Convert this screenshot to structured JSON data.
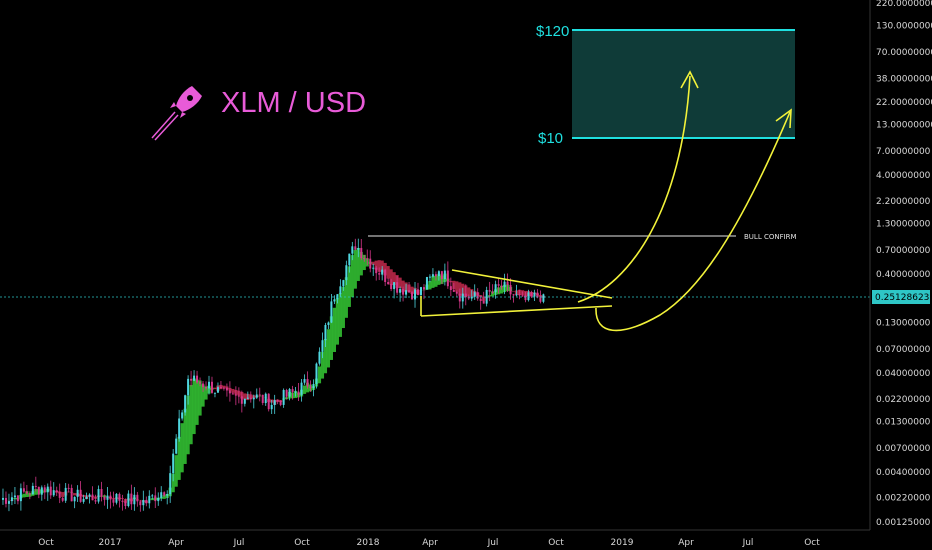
{
  "chart_data": {
    "type": "candlestick",
    "title": "XLM / USD",
    "scale": "log",
    "y_ticks": [
      "220.00000000",
      "130.00000000",
      "70.00000000",
      "38.00000000",
      "22.00000000",
      "13.00000000",
      "7.00000000",
      "4.00000000",
      "2.20000000",
      "1.30000000",
      "0.70000000",
      "0.40000000",
      "0.13000000",
      "0.07000000",
      "0.04000000",
      "0.02200000",
      "0.01300000",
      "0.00700000",
      "0.00400000",
      "0.00220000",
      "0.00125000"
    ],
    "x_ticks": [
      "Oct",
      "2017",
      "Apr",
      "Jul",
      "Oct",
      "2018",
      "Apr",
      "Jul",
      "Oct",
      "2019",
      "Apr",
      "Jul",
      "Oct"
    ],
    "current_price": "0.25128623",
    "price_series": [
      [
        "2016-08",
        0.0021
      ],
      [
        "2016-09",
        0.0024
      ],
      [
        "2016-10",
        0.0028
      ],
      [
        "2016-11",
        0.0024
      ],
      [
        "2016-12",
        0.0022
      ],
      [
        "2017-01",
        0.0023
      ],
      [
        "2017-02",
        0.0021
      ],
      [
        "2017-03",
        0.002
      ],
      [
        "2017-04",
        0.0028
      ],
      [
        "2017-05",
        0.035
      ],
      [
        "2017-06",
        0.03
      ],
      [
        "2017-07",
        0.022
      ],
      [
        "2017-08",
        0.024
      ],
      [
        "2017-09",
        0.02
      ],
      [
        "2017-10",
        0.025
      ],
      [
        "2017-11",
        0.035
      ],
      [
        "2017-12",
        0.25
      ],
      [
        "2018-01",
        0.8
      ],
      [
        "2018-02",
        0.45
      ],
      [
        "2018-03",
        0.3
      ],
      [
        "2018-04",
        0.25
      ],
      [
        "2018-05",
        0.45
      ],
      [
        "2018-06",
        0.25
      ],
      [
        "2018-07",
        0.22
      ],
      [
        "2018-08",
        0.3
      ],
      [
        "2018-09",
        0.21
      ],
      [
        "2018-10",
        0.25
      ]
    ],
    "annotations": {
      "bull_confirm_label": "BULL CONFIRM",
      "bull_confirm_level": 0.95,
      "target_high_label": "$120",
      "target_low_label": "$10",
      "target_high": 120,
      "target_low": 10,
      "triangle_top": [
        [
          "2018-05",
          0.5
        ],
        [
          "2018-11",
          0.24
        ]
      ],
      "triangle_bottom": [
        [
          "2018-03",
          0.17
        ],
        [
          "2018-11",
          0.2
        ]
      ]
    },
    "colors": {
      "up": "#4fd6e0",
      "down": "#d6378a",
      "ribbon_up": "#35c935",
      "ribbon_down": "#c32a4c",
      "target_zone": "#0f3b38",
      "target_line": "#1fe0e0",
      "triangle": "#f2f23a",
      "title": "#e85bd8",
      "price_line": "#2ec6c6"
    }
  }
}
